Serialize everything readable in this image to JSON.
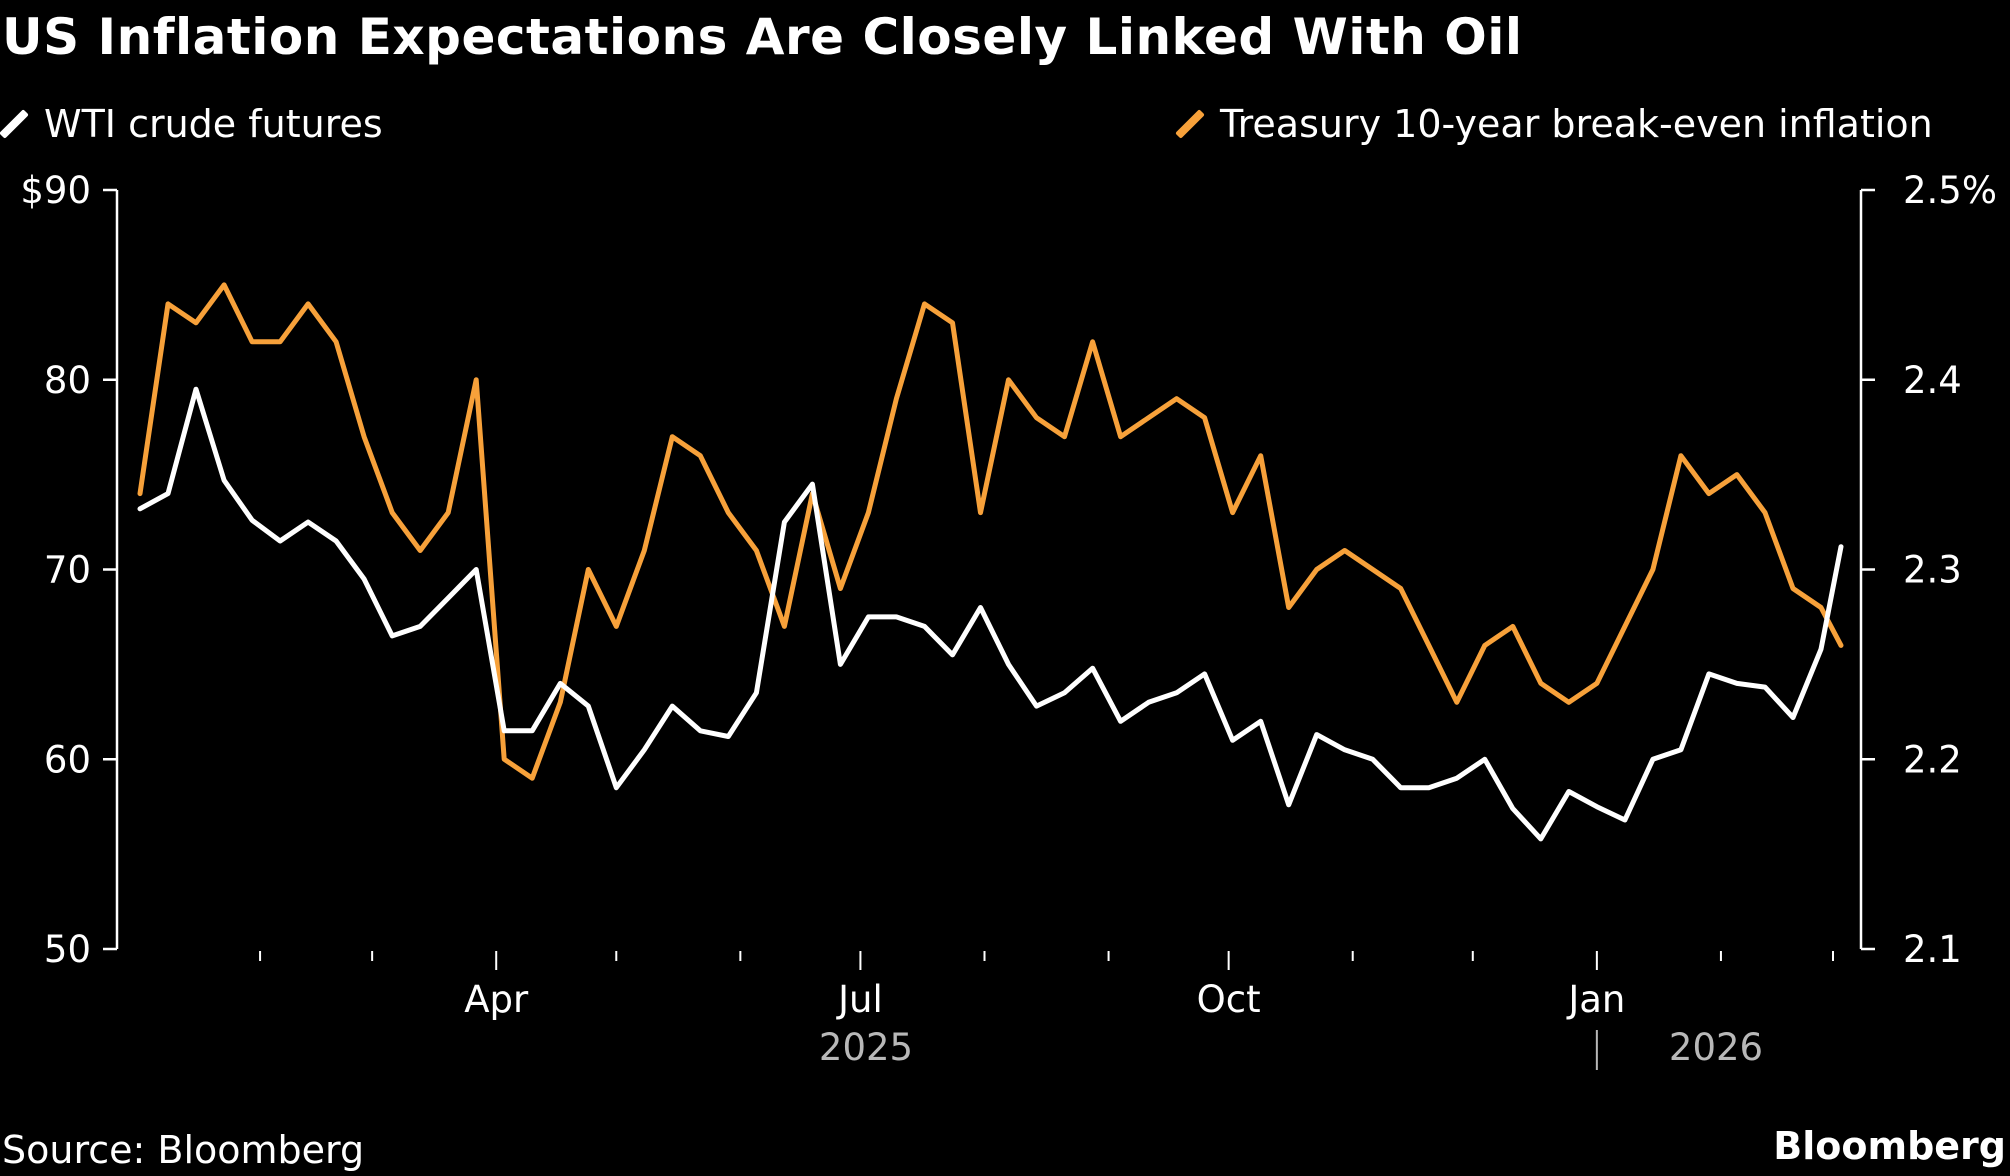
{
  "title": "US Inflation Expectations Are Closely Linked With Oil",
  "source": "Source: Bloomberg",
  "brand": "Bloomberg",
  "chart_data": {
    "type": "line",
    "title": "US Inflation Expectations Are Closely Linked With Oil",
    "legend_position": "top",
    "grid": false,
    "x_tick_labels": [
      "Apr",
      "Jul",
      "Oct",
      "Jan"
    ],
    "x_year_labels": [
      "2025",
      "2026"
    ],
    "left_axis": {
      "ylim": [
        50,
        90
      ],
      "ticks": [
        "$90",
        "80",
        "70",
        "60",
        "50"
      ],
      "tick_values": [
        90,
        80,
        70,
        60,
        50
      ]
    },
    "right_axis": {
      "ylim": [
        2.1,
        2.5
      ],
      "ticks": [
        "2.5%",
        "2.4",
        "2.3",
        "2.2",
        "2.1"
      ],
      "tick_values": [
        2.5,
        2.4,
        2.3,
        2.2,
        2.1
      ]
    },
    "x": [
      "2025-01-02",
      "2025-01-09",
      "2025-01-16",
      "2025-01-23",
      "2025-01-30",
      "2025-02-06",
      "2025-02-13",
      "2025-02-20",
      "2025-02-27",
      "2025-03-06",
      "2025-03-13",
      "2025-03-20",
      "2025-03-27",
      "2025-04-03",
      "2025-04-10",
      "2025-04-17",
      "2025-04-24",
      "2025-05-01",
      "2025-05-08",
      "2025-05-15",
      "2025-05-22",
      "2025-05-29",
      "2025-06-05",
      "2025-06-12",
      "2025-06-19",
      "2025-06-26",
      "2025-07-03",
      "2025-07-10",
      "2025-07-17",
      "2025-07-24",
      "2025-07-31",
      "2025-08-07",
      "2025-08-14",
      "2025-08-21",
      "2025-08-28",
      "2025-09-04",
      "2025-09-11",
      "2025-09-18",
      "2025-09-25",
      "2025-10-02",
      "2025-10-09",
      "2025-10-16",
      "2025-10-23",
      "2025-10-30",
      "2025-11-06",
      "2025-11-13",
      "2025-11-20",
      "2025-11-27",
      "2025-12-04",
      "2025-12-11",
      "2025-12-18",
      "2025-12-25",
      "2026-01-01",
      "2026-01-08",
      "2026-01-15",
      "2026-01-22",
      "2026-01-29",
      "2026-02-05",
      "2026-02-12",
      "2026-02-19",
      "2026-02-26",
      "2026-03-03"
    ],
    "series": [
      {
        "name": "WTI crude futures",
        "axis": "left",
        "color": "#ffffff",
        "values": [
          73.2,
          74,
          79.5,
          74.7,
          72.6,
          71.5,
          72.5,
          71.5,
          69.5,
          66.5,
          67,
          68.5,
          70,
          61.5,
          61.5,
          64,
          62.8,
          58.5,
          60.5,
          62.8,
          61.5,
          61.2,
          63.5,
          72.5,
          74.5,
          65,
          67.5,
          67.5,
          67,
          65.5,
          68,
          65,
          62.8,
          63.5,
          64.8,
          62,
          63,
          63.5,
          64.5,
          61,
          62,
          57.6,
          61.3,
          60.5,
          60,
          58.5,
          58.5,
          59,
          60,
          57.4,
          55.8,
          58.3,
          57.5,
          56.8,
          60,
          60.5,
          64.5,
          64,
          63.8,
          62.2,
          65.8,
          71.2
        ]
      },
      {
        "name": "Treasury 10-year break-even inflation",
        "axis": "right",
        "color": "#f7a13a",
        "values": [
          2.34,
          2.44,
          2.43,
          2.45,
          2.42,
          2.42,
          2.44,
          2.42,
          2.37,
          2.33,
          2.31,
          2.33,
          2.4,
          2.2,
          2.19,
          2.23,
          2.3,
          2.27,
          2.31,
          2.37,
          2.36,
          2.33,
          2.31,
          2.27,
          2.34,
          2.29,
          2.33,
          2.39,
          2.44,
          2.43,
          2.33,
          2.4,
          2.38,
          2.37,
          2.42,
          2.37,
          2.38,
          2.39,
          2.38,
          2.33,
          2.36,
          2.28,
          2.3,
          2.31,
          2.3,
          2.29,
          2.26,
          2.23,
          2.26,
          2.27,
          2.24,
          2.23,
          2.24,
          2.27,
          2.3,
          2.36,
          2.34,
          2.35,
          2.33,
          2.29,
          2.28,
          2.26
        ]
      }
    ]
  }
}
